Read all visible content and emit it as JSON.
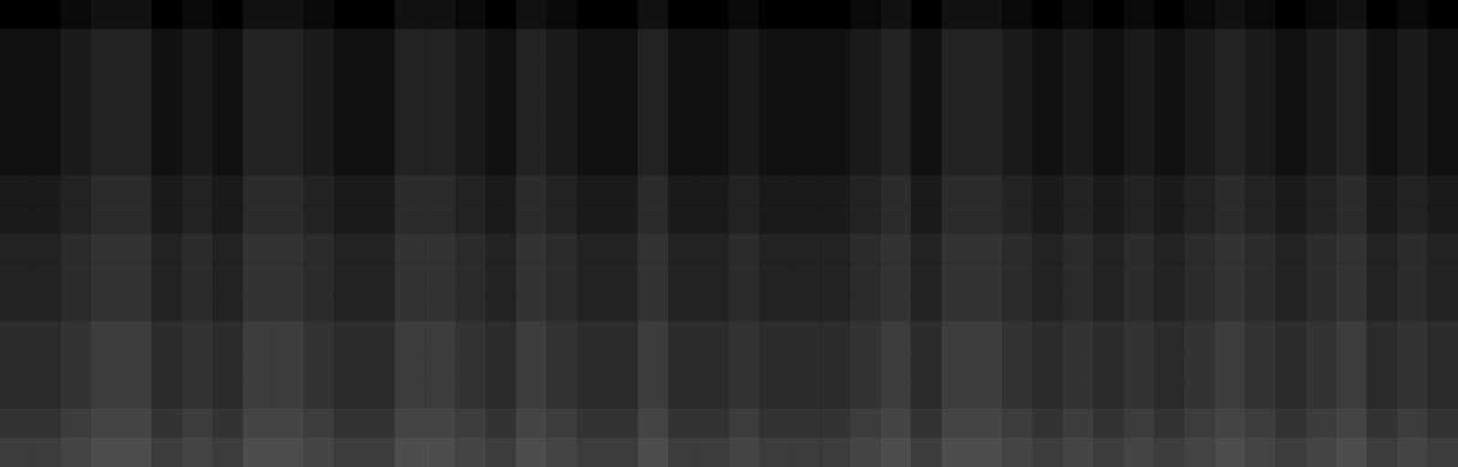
{
  "chart_data": {
    "type": "heatmap",
    "tick_labels": false,
    "grid": false,
    "color": "#ffffff",
    "color_range": [
      0,
      30
    ],
    "cells": [
      [
        0,
        0,
        1,
        2,
        2,
        0,
        1,
        0,
        2,
        2,
        1,
        0,
        0,
        2,
        2,
        1,
        0,
        2,
        1,
        0,
        0,
        2,
        0,
        0,
        1,
        0,
        0,
        0,
        1,
        2,
        0,
        2,
        2,
        1,
        0,
        1,
        0,
        1,
        0,
        1,
        2,
        1,
        0,
        1,
        2,
        0,
        1,
        0
      ],
      [
        2,
        2,
        3,
        4,
        4,
        2,
        3,
        2,
        4,
        4,
        3,
        2,
        2,
        4,
        4,
        3,
        2,
        4,
        3,
        2,
        2,
        4,
        2,
        2,
        3,
        2,
        2,
        2,
        3,
        4,
        2,
        4,
        4,
        3,
        2,
        3,
        2,
        3,
        2,
        3,
        4,
        3,
        2,
        3,
        4,
        2,
        3,
        2
      ],
      [
        2,
        2,
        3,
        4,
        4,
        2,
        3,
        2,
        4,
        4,
        3,
        2,
        2,
        4,
        4,
        3,
        2,
        4,
        3,
        2,
        2,
        4,
        2,
        2,
        3,
        2,
        2,
        2,
        3,
        4,
        2,
        4,
        4,
        3,
        2,
        3,
        2,
        3,
        2,
        3,
        4,
        3,
        2,
        3,
        4,
        2,
        3,
        2
      ],
      [
        2,
        2,
        3,
        4,
        4,
        2,
        3,
        2,
        4,
        4,
        3,
        2,
        2,
        4,
        4,
        3,
        2,
        4,
        3,
        2,
        2,
        4,
        2,
        2,
        3,
        2,
        2,
        2,
        3,
        4,
        2,
        4,
        4,
        3,
        2,
        3,
        2,
        3,
        2,
        3,
        4,
        3,
        2,
        3,
        4,
        2,
        3,
        2
      ],
      [
        2,
        2,
        3,
        4,
        4,
        2,
        3,
        2,
        4,
        4,
        3,
        2,
        2,
        4,
        4,
        3,
        2,
        4,
        3,
        2,
        2,
        4,
        2,
        2,
        3,
        2,
        2,
        2,
        3,
        4,
        2,
        4,
        4,
        3,
        2,
        3,
        2,
        3,
        2,
        3,
        4,
        3,
        2,
        3,
        4,
        2,
        3,
        2
      ],
      [
        2,
        2,
        3,
        4,
        4,
        2,
        3,
        2,
        4,
        4,
        3,
        2,
        2,
        4,
        4,
        3,
        2,
        4,
        3,
        2,
        2,
        4,
        2,
        2,
        3,
        2,
        2,
        2,
        3,
        4,
        2,
        4,
        4,
        3,
        2,
        3,
        2,
        3,
        2,
        3,
        4,
        3,
        2,
        3,
        4,
        2,
        3,
        2
      ],
      [
        3,
        3,
        4,
        5,
        5,
        3,
        4,
        3,
        5,
        5,
        4,
        3,
        3,
        5,
        5,
        4,
        3,
        5,
        4,
        3,
        3,
        5,
        3,
        3,
        4,
        3,
        3,
        3,
        4,
        5,
        3,
        5,
        5,
        4,
        3,
        4,
        3,
        4,
        3,
        4,
        5,
        4,
        3,
        4,
        5,
        3,
        4,
        3
      ],
      [
        3,
        3,
        4,
        5,
        5,
        3,
        4,
        3,
        5,
        5,
        4,
        3,
        3,
        5,
        5,
        4,
        3,
        5,
        4,
        3,
        3,
        5,
        3,
        3,
        4,
        3,
        3,
        3,
        4,
        5,
        3,
        5,
        5,
        4,
        3,
        4,
        3,
        4,
        3,
        4,
        5,
        4,
        3,
        4,
        5,
        3,
        4,
        3
      ],
      [
        4,
        4,
        5,
        6,
        6,
        4,
        5,
        4,
        6,
        6,
        5,
        4,
        4,
        6,
        6,
        5,
        4,
        6,
        5,
        4,
        4,
        6,
        4,
        4,
        5,
        4,
        4,
        4,
        5,
        6,
        4,
        6,
        6,
        5,
        4,
        5,
        4,
        5,
        4,
        5,
        6,
        5,
        4,
        5,
        6,
        4,
        5,
        4
      ],
      [
        4,
        4,
        5,
        6,
        6,
        4,
        5,
        4,
        6,
        6,
        5,
        4,
        4,
        6,
        6,
        5,
        4,
        6,
        5,
        4,
        4,
        6,
        4,
        4,
        5,
        4,
        4,
        4,
        5,
        6,
        4,
        6,
        6,
        5,
        4,
        5,
        4,
        5,
        4,
        5,
        6,
        5,
        4,
        5,
        6,
        4,
        5,
        4
      ],
      [
        4,
        4,
        5,
        6,
        6,
        4,
        5,
        4,
        6,
        6,
        5,
        4,
        4,
        6,
        6,
        5,
        4,
        6,
        5,
        4,
        4,
        6,
        4,
        4,
        5,
        4,
        4,
        4,
        5,
        6,
        4,
        6,
        6,
        5,
        4,
        5,
        4,
        5,
        4,
        5,
        6,
        5,
        4,
        5,
        6,
        4,
        5,
        4
      ],
      [
        5,
        5,
        6,
        7,
        7,
        5,
        6,
        5,
        7,
        7,
        6,
        5,
        5,
        7,
        7,
        6,
        5,
        7,
        6,
        5,
        5,
        7,
        5,
        5,
        6,
        5,
        5,
        5,
        6,
        7,
        5,
        7,
        7,
        6,
        5,
        6,
        5,
        6,
        5,
        6,
        7,
        6,
        5,
        6,
        7,
        5,
        6,
        5
      ],
      [
        5,
        5,
        6,
        7,
        7,
        5,
        6,
        5,
        7,
        7,
        6,
        5,
        5,
        7,
        7,
        6,
        5,
        7,
        6,
        5,
        5,
        7,
        5,
        5,
        6,
        5,
        5,
        5,
        6,
        7,
        5,
        7,
        7,
        6,
        5,
        6,
        5,
        6,
        5,
        6,
        7,
        6,
        5,
        6,
        7,
        5,
        6,
        5
      ],
      [
        5,
        5,
        6,
        7,
        7,
        5,
        6,
        5,
        7,
        7,
        6,
        5,
        5,
        7,
        7,
        6,
        5,
        7,
        6,
        5,
        5,
        7,
        5,
        5,
        6,
        5,
        5,
        5,
        6,
        7,
        5,
        7,
        7,
        6,
        5,
        6,
        5,
        6,
        5,
        6,
        7,
        6,
        5,
        6,
        7,
        5,
        6,
        5
      ],
      [
        6,
        6,
        7,
        8,
        8,
        6,
        7,
        6,
        8,
        8,
        7,
        6,
        6,
        8,
        8,
        7,
        6,
        8,
        7,
        6,
        6,
        8,
        6,
        6,
        7,
        6,
        6,
        6,
        7,
        8,
        6,
        8,
        8,
        7,
        6,
        7,
        6,
        7,
        6,
        7,
        8,
        7,
        6,
        7,
        8,
        6,
        7,
        6
      ],
      [
        7,
        7,
        8,
        9,
        9,
        7,
        8,
        7,
        9,
        9,
        8,
        7,
        7,
        9,
        9,
        8,
        7,
        9,
        8,
        7,
        7,
        9,
        7,
        7,
        8,
        7,
        7,
        7,
        8,
        9,
        7,
        9,
        9,
        8,
        7,
        8,
        7,
        8,
        7,
        8,
        9,
        8,
        7,
        8,
        9,
        7,
        8,
        7
      ]
    ]
  }
}
